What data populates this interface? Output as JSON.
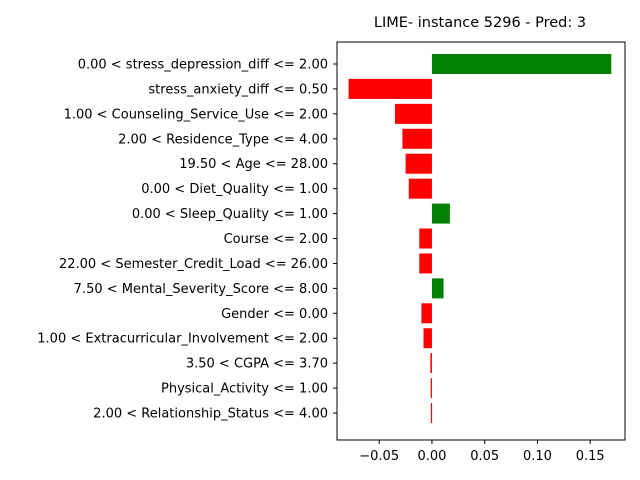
{
  "chart_data": {
    "type": "bar",
    "orientation": "horizontal",
    "title": "LIME- instance 5296 - Pred: 3",
    "xlabel": "",
    "ylabel": "",
    "xlim": [
      -0.09,
      0.183
    ],
    "xticks": [
      -0.05,
      0.0,
      0.05,
      0.1,
      0.15
    ],
    "xtick_labels": [
      "−0.05",
      "0.00",
      "0.05",
      "0.10",
      "0.15"
    ],
    "grid": false,
    "positive_color": "#008000",
    "negative_color": "#ff0000",
    "categories": [
      "0.00 < stress_depression_diff <= 2.00",
      "stress_anxiety_diff <= 0.50",
      "1.00 < Counseling_Service_Use <= 2.00",
      "2.00 < Residence_Type <= 4.00",
      "19.50 < Age <= 28.00",
      "0.00 < Diet_Quality <= 1.00",
      "0.00 < Sleep_Quality <= 1.00",
      "Course <= 2.00",
      "22.00 < Semester_Credit_Load <= 26.00",
      "7.50 < Mental_Severity_Score <= 8.00",
      "Gender <= 0.00",
      "1.00 < Extracurricular_Involvement <= 2.00",
      "3.50 < CGPA <= 3.70",
      "Physical_Activity <= 1.00",
      "2.00 < Relationship_Status <= 4.00"
    ],
    "values": [
      0.17,
      -0.079,
      -0.035,
      -0.028,
      -0.025,
      -0.022,
      0.017,
      -0.012,
      -0.012,
      0.011,
      -0.01,
      -0.008,
      -0.0015,
      -0.0012,
      -0.001
    ]
  }
}
